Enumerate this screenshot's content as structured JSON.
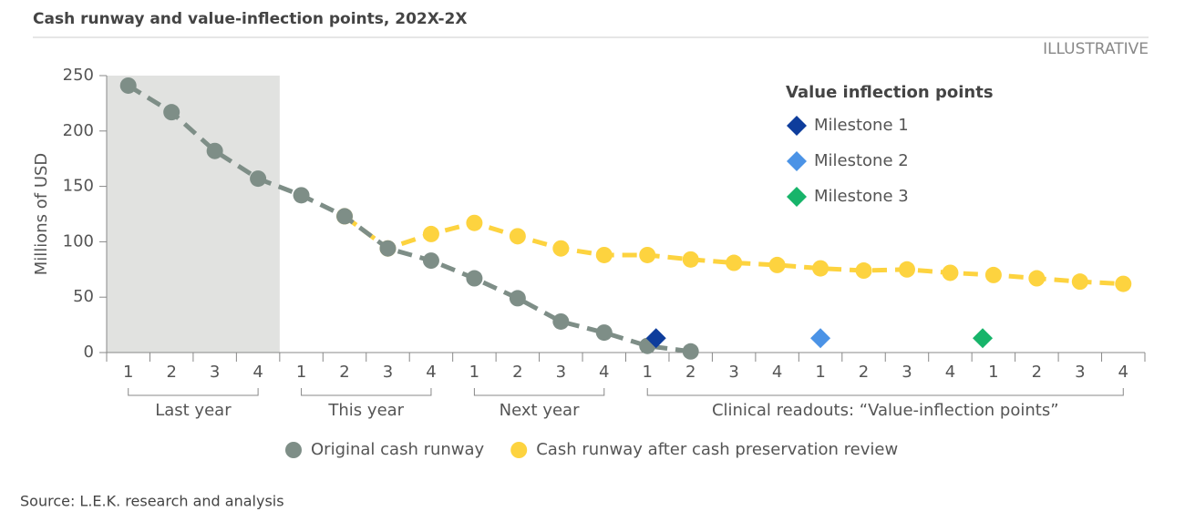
{
  "chart_data": {
    "type": "line",
    "title": "Cash runway and value-inflection points, 202X-2X",
    "note": "ILLUSTRATIVE",
    "source": "Source: L.E.K. research and analysis",
    "ylabel": "Millions of USD",
    "categories": [
      "1",
      "2",
      "3",
      "4",
      "1",
      "2",
      "3",
      "4",
      "1",
      "2",
      "3",
      "4",
      "1",
      "2",
      "3",
      "4",
      "1",
      "2",
      "3",
      "4",
      "1",
      "2",
      "3",
      "4"
    ],
    "groups": [
      {
        "label": "Last year",
        "start": 0,
        "end": 3
      },
      {
        "label": "This year",
        "start": 4,
        "end": 7
      },
      {
        "label": "Next year",
        "start": 8,
        "end": 11
      },
      {
        "label": "Clinical readouts: “Value-inflection points”",
        "start": 12,
        "end": 23
      }
    ],
    "shaded_group": 0,
    "series": [
      {
        "name": "Original cash runway",
        "color": "#7e8e87",
        "values": [
          241,
          217,
          182,
          157,
          142,
          123,
          94,
          83,
          67,
          49,
          28,
          18,
          6,
          1,
          null,
          null,
          null,
          null,
          null,
          null,
          null,
          null,
          null,
          null
        ]
      },
      {
        "name": "Cash runway after cash preservation review",
        "color": "#fdd33f",
        "values": [
          null,
          null,
          null,
          null,
          null,
          123,
          94,
          107,
          117,
          105,
          94,
          88,
          88,
          84,
          81,
          79,
          76,
          74,
          75,
          72,
          70,
          67,
          64,
          62
        ]
      }
    ],
    "milestones_title": "Value inflection points",
    "milestones": [
      {
        "name": "Milestone 1",
        "color": "#0e3d9c",
        "x": 12.2,
        "value": 13
      },
      {
        "name": "Milestone 2",
        "color": "#4b93e6",
        "x": 16,
        "value": 13
      },
      {
        "name": "Milestone 3",
        "color": "#17b46a",
        "x": 19.75,
        "value": 13
      }
    ],
    "xlim": [
      -0.5,
      23.5
    ],
    "ylim": [
      0,
      250
    ],
    "yticks": [
      0,
      50,
      100,
      150,
      200,
      250
    ]
  }
}
